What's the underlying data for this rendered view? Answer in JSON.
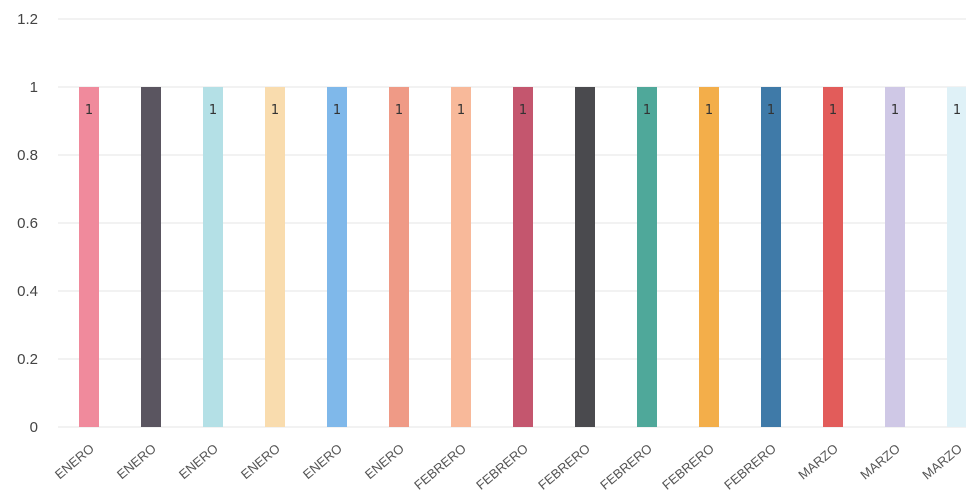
{
  "chart_data": {
    "type": "bar",
    "categories": [
      "ENERO",
      "ENERO",
      "ENERO",
      "ENERO",
      "ENERO",
      "ENERO",
      "FEBRERO",
      "FEBRERO",
      "FEBRERO",
      "FEBRERO",
      "FEBRERO",
      "FEBRERO",
      "MARZO",
      "MARZO",
      "MARZO"
    ],
    "values": [
      1,
      1,
      1,
      1,
      1,
      1,
      1,
      1,
      1,
      1,
      1,
      1,
      1,
      1,
      1
    ],
    "data_labels": [
      "1",
      "",
      "1",
      "1",
      "1",
      "1",
      "1",
      "1",
      "",
      "1",
      "1",
      "1",
      "1",
      "1",
      "1"
    ],
    "bar_colors": [
      "#f08a9c",
      "#5a5560",
      "#b4e0e6",
      "#f9dcae",
      "#7fb8ea",
      "#ef9a86",
      "#f8b99a",
      "#c4566e",
      "#4a4a4e",
      "#4fa89a",
      "#f3ae4a",
      "#3f7aa8",
      "#e25c5a",
      "#cfc8e6",
      "#dff1f7"
    ],
    "yticks": [
      "0",
      "0.2",
      "0.4",
      "0.6",
      "0.8",
      "1",
      "1.2"
    ],
    "ylim": [
      0,
      1.2
    ],
    "grid": true,
    "legend": "none"
  }
}
